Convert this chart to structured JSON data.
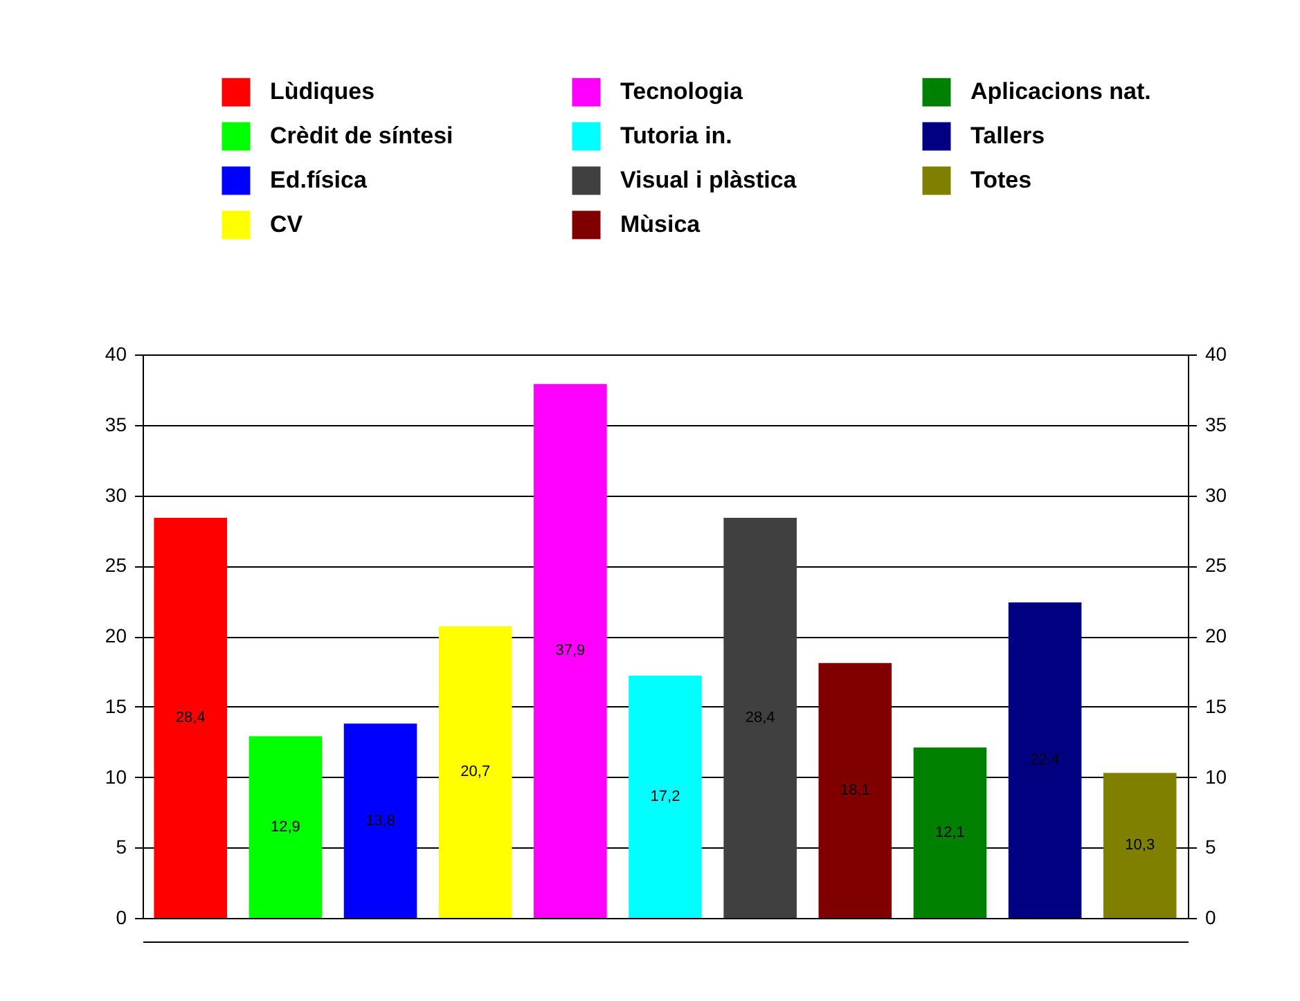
{
  "chart_data": {
    "type": "bar",
    "categories": [
      null,
      null,
      null,
      null,
      null,
      null,
      null,
      null,
      null,
      null,
      null
    ],
    "series": [
      {
        "name": "Lùdiques",
        "color": "#ff0000",
        "values": [
          28.4,
          null,
          null,
          null,
          null,
          null,
          null,
          null,
          null,
          null,
          null
        ],
        "value_labels": [
          "28,4",
          null,
          null,
          null,
          null,
          null,
          null,
          null,
          null,
          null,
          null
        ]
      },
      {
        "name": "Crèdit de síntesi",
        "color": "#00ff00",
        "values": [
          null,
          12.9,
          null,
          null,
          null,
          null,
          null,
          null,
          null,
          null,
          null
        ],
        "value_labels": [
          null,
          "12,9",
          null,
          null,
          null,
          null,
          null,
          null,
          null,
          null,
          null
        ]
      },
      {
        "name": "Ed.física",
        "color": "#0000ff",
        "values": [
          null,
          null,
          13.8,
          null,
          null,
          null,
          null,
          null,
          null,
          null,
          null
        ],
        "value_labels": [
          null,
          null,
          "13,8",
          null,
          null,
          null,
          null,
          null,
          null,
          null,
          null
        ]
      },
      {
        "name": "CV",
        "color": "#ffff00",
        "values": [
          null,
          null,
          null,
          20.7,
          null,
          null,
          null,
          null,
          null,
          null,
          null
        ],
        "value_labels": [
          null,
          null,
          null,
          "20,7",
          null,
          null,
          null,
          null,
          null,
          null,
          null
        ]
      },
      {
        "name": "Tecnologia",
        "color": "#ff00ff",
        "values": [
          null,
          null,
          null,
          null,
          37.9,
          null,
          null,
          null,
          null,
          null,
          null
        ],
        "value_labels": [
          null,
          null,
          null,
          null,
          "37,9",
          null,
          null,
          null,
          null,
          null,
          null
        ]
      },
      {
        "name": "Tutoria in.",
        "color": "#00ffff",
        "values": [
          null,
          null,
          null,
          null,
          null,
          17.2,
          null,
          null,
          null,
          null,
          null
        ],
        "value_labels": [
          null,
          null,
          null,
          null,
          null,
          "17,2",
          null,
          null,
          null,
          null,
          null
        ]
      },
      {
        "name": "Visual i plàstica",
        "color": "#404040",
        "values": [
          null,
          null,
          null,
          null,
          null,
          null,
          28.4,
          null,
          null,
          null,
          null
        ],
        "value_labels": [
          null,
          null,
          null,
          null,
          null,
          null,
          "28,4",
          null,
          null,
          null,
          null
        ]
      },
      {
        "name": "Mùsica",
        "color": "#800000",
        "values": [
          null,
          null,
          null,
          null,
          null,
          null,
          null,
          18.1,
          null,
          null,
          null
        ],
        "value_labels": [
          null,
          null,
          null,
          null,
          null,
          null,
          null,
          "18,1",
          null,
          null,
          null
        ]
      },
      {
        "name": "Aplicacions nat.",
        "color": "#008000",
        "values": [
          null,
          null,
          null,
          null,
          null,
          null,
          null,
          null,
          12.1,
          null,
          null
        ],
        "value_labels": [
          null,
          null,
          null,
          null,
          null,
          null,
          null,
          null,
          "12,1",
          null,
          null
        ]
      },
      {
        "name": "Tallers",
        "color": "#000080",
        "values": [
          null,
          null,
          null,
          null,
          null,
          null,
          null,
          null,
          null,
          22.4,
          null
        ],
        "value_labels": [
          null,
          null,
          null,
          null,
          null,
          null,
          null,
          null,
          null,
          "22,4",
          null
        ]
      },
      {
        "name": "Totes",
        "color": "#808000",
        "values": [
          null,
          null,
          null,
          null,
          null,
          null,
          null,
          null,
          null,
          null,
          10.3
        ],
        "value_labels": [
          null,
          null,
          null,
          null,
          null,
          null,
          null,
          null,
          null,
          null,
          "10,3"
        ]
      }
    ],
    "ylim": [
      0,
      40
    ],
    "yticks": [
      0,
      5,
      10,
      15,
      20,
      25,
      30,
      35,
      40
    ],
    "y2lim": [
      0,
      40
    ],
    "y2ticks": [
      0,
      5,
      10,
      15,
      20,
      25,
      30,
      35,
      40
    ],
    "grid": "y",
    "legend": "top"
  }
}
